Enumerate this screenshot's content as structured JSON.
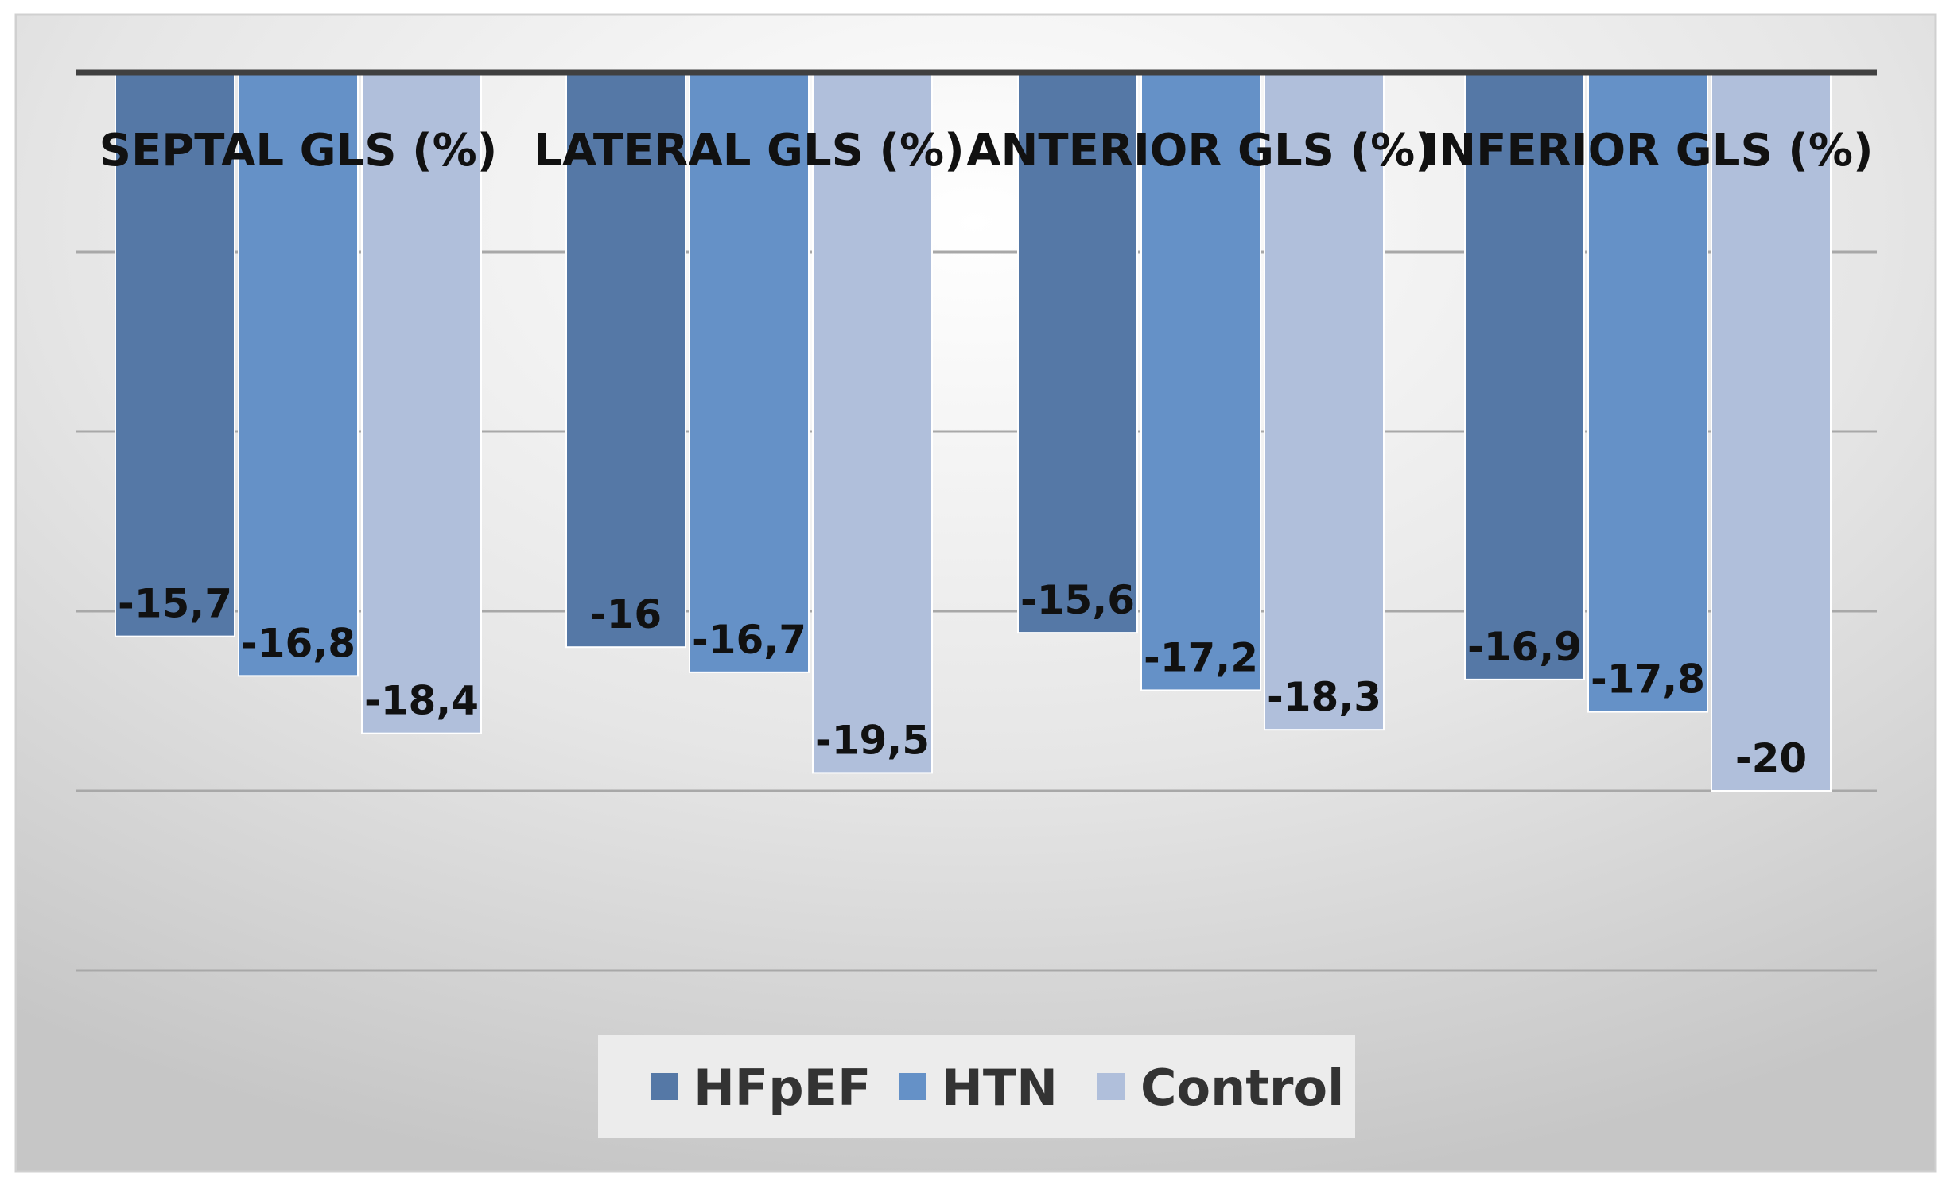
{
  "chart_data": {
    "type": "bar",
    "title": "",
    "xlabel": "",
    "ylabel": "",
    "categories": [
      "SEPTAL GLS (%)",
      "LATERAL GLS (%)",
      "ANTERIOR GLS (%)",
      "INFERIOR GLS (%)"
    ],
    "series": [
      {
        "name": "HFpEF",
        "color": "#5578a6",
        "values": [
          -15.7,
          -16,
          -15.6,
          -16.9
        ],
        "labels": [
          "-15,7",
          "-16",
          "-15,6",
          "-16,9"
        ]
      },
      {
        "name": "HTN",
        "color": "#6591c7",
        "values": [
          -16.8,
          -16.7,
          -17.2,
          -17.8
        ],
        "labels": [
          "-16,8",
          "-16,7",
          "-17,2",
          "-17,8"
        ]
      },
      {
        "name": "Control",
        "color": "#b0bfdb",
        "values": [
          -18.4,
          -19.5,
          -18.3,
          -20
        ],
        "labels": [
          "-18,4",
          "-19,5",
          "-18,3",
          "-20"
        ]
      }
    ],
    "ylim": [
      -25,
      0
    ],
    "grid": true,
    "tick_labels_shown": false,
    "category_labels_position": "top",
    "legend_position": "bottom"
  }
}
